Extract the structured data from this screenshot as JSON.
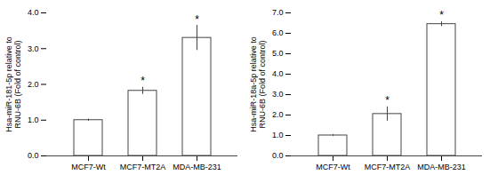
{
  "chart_data": [
    {
      "type": "bar",
      "ylabel": "Hsa-miR-181-5p relative to\nRNU-6B (Fold of control)",
      "categories": [
        "MCF7-Wt",
        "MCF7-MT2A",
        "MDA-MB-231"
      ],
      "values": [
        1.0,
        1.82,
        3.3
      ],
      "errors": [
        0.03,
        0.1,
        0.35
      ],
      "annotations": [
        null,
        "*",
        "*"
      ],
      "ylim": [
        0,
        4
      ],
      "yticks": [
        0,
        1,
        2,
        3,
        4
      ],
      "color": "#ffffff"
    },
    {
      "type": "bar",
      "ylabel": "Hsa-miR-18a-5p relative to\nRNU-6B (Fold of control)",
      "categories": [
        "MCF7-Wt",
        "MCF7-MT2A",
        "MDA-MB-231"
      ],
      "values": [
        1.0,
        2.05,
        6.45
      ],
      "errors": [
        0.04,
        0.35,
        0.12
      ],
      "annotations": [
        null,
        "*",
        "*"
      ],
      "ylim": [
        0,
        7
      ],
      "yticks": [
        0,
        1,
        2,
        3,
        4,
        5,
        6,
        7
      ],
      "color": "#ffffff"
    }
  ]
}
